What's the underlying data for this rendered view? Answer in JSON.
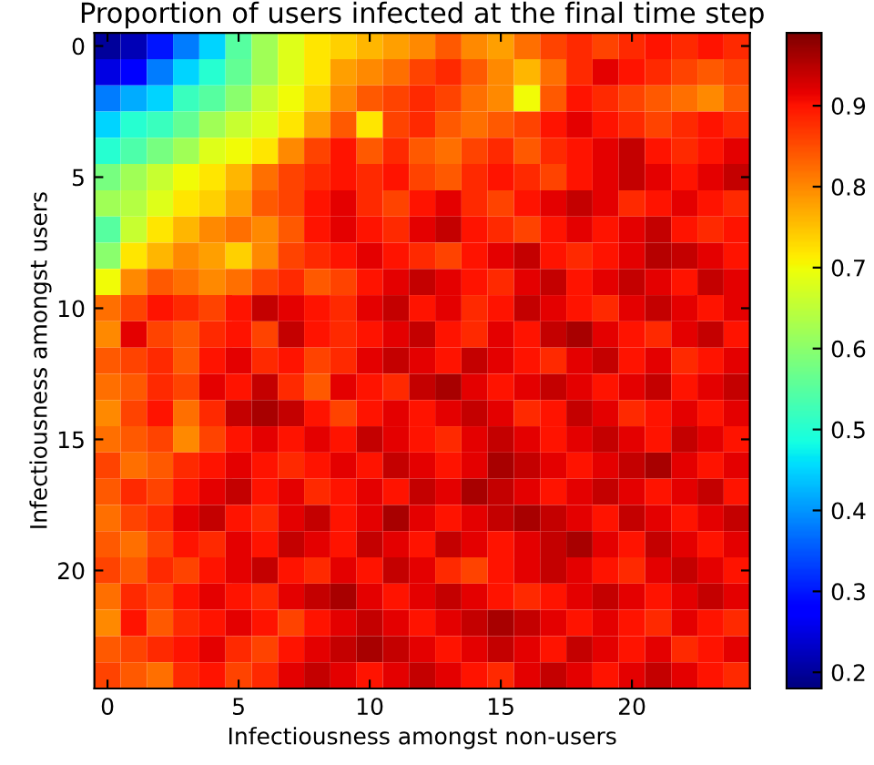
{
  "chart_data": {
    "type": "heatmap",
    "title": "Proportion of users infected at the final time step",
    "xlabel": "Infectiousness amongst non-users",
    "ylabel": "Infectiousness amongst users",
    "x": [
      0,
      1,
      2,
      3,
      4,
      5,
      6,
      7,
      8,
      9,
      10,
      11,
      12,
      13,
      14,
      15,
      16,
      17,
      18,
      19,
      20,
      21,
      22,
      23,
      24
    ],
    "y": [
      0,
      1,
      2,
      3,
      4,
      5,
      6,
      7,
      8,
      9,
      10,
      11,
      12,
      13,
      14,
      15,
      16,
      17,
      18,
      19,
      20,
      21,
      22,
      23,
      24
    ],
    "xlim": [
      -0.5,
      24.5
    ],
    "ylim": [
      24.5,
      -0.5
    ],
    "xticks": [
      0,
      5,
      10,
      15,
      20
    ],
    "yticks": [
      0,
      5,
      10,
      15,
      20
    ],
    "clim": [
      0.18,
      0.99
    ],
    "cticks": [
      0.2,
      0.3,
      0.4,
      0.5,
      0.6,
      0.7,
      0.8,
      0.9
    ],
    "grid": false,
    "cells": [
      [
        0.2,
        0.22,
        0.3,
        0.38,
        0.45,
        0.55,
        0.62,
        0.68,
        0.72,
        0.74,
        0.76,
        0.78,
        0.8,
        0.84,
        0.8,
        0.78,
        0.82,
        0.86,
        0.88,
        0.86,
        0.88,
        0.9,
        0.88,
        0.9,
        0.88
      ],
      [
        0.25,
        0.28,
        0.38,
        0.45,
        0.5,
        0.56,
        0.62,
        0.68,
        0.72,
        0.78,
        0.8,
        0.82,
        0.86,
        0.88,
        0.84,
        0.8,
        0.76,
        0.82,
        0.88,
        0.92,
        0.9,
        0.88,
        0.86,
        0.84,
        0.86
      ],
      [
        0.38,
        0.42,
        0.45,
        0.52,
        0.55,
        0.6,
        0.66,
        0.7,
        0.74,
        0.8,
        0.84,
        0.86,
        0.88,
        0.86,
        0.82,
        0.8,
        0.7,
        0.84,
        0.9,
        0.88,
        0.86,
        0.84,
        0.82,
        0.8,
        0.84
      ],
      [
        0.45,
        0.5,
        0.52,
        0.56,
        0.62,
        0.66,
        0.68,
        0.72,
        0.78,
        0.84,
        0.72,
        0.86,
        0.88,
        0.84,
        0.82,
        0.84,
        0.86,
        0.9,
        0.92,
        0.9,
        0.88,
        0.86,
        0.88,
        0.9,
        0.88
      ],
      [
        0.5,
        0.54,
        0.58,
        0.62,
        0.68,
        0.7,
        0.72,
        0.8,
        0.86,
        0.9,
        0.84,
        0.88,
        0.84,
        0.82,
        0.86,
        0.88,
        0.84,
        0.88,
        0.9,
        0.92,
        0.94,
        0.9,
        0.88,
        0.9,
        0.92
      ],
      [
        0.58,
        0.62,
        0.66,
        0.7,
        0.72,
        0.76,
        0.82,
        0.86,
        0.88,
        0.9,
        0.88,
        0.9,
        0.86,
        0.84,
        0.88,
        0.9,
        0.88,
        0.86,
        0.9,
        0.92,
        0.94,
        0.92,
        0.9,
        0.92,
        0.94
      ],
      [
        0.62,
        0.64,
        0.68,
        0.72,
        0.74,
        0.78,
        0.84,
        0.86,
        0.9,
        0.92,
        0.88,
        0.86,
        0.9,
        0.92,
        0.88,
        0.86,
        0.9,
        0.92,
        0.94,
        0.92,
        0.88,
        0.9,
        0.92,
        0.9,
        0.88
      ],
      [
        0.55,
        0.66,
        0.72,
        0.76,
        0.8,
        0.82,
        0.8,
        0.84,
        0.9,
        0.92,
        0.9,
        0.88,
        0.92,
        0.94,
        0.9,
        0.88,
        0.86,
        0.9,
        0.92,
        0.9,
        0.92,
        0.94,
        0.9,
        0.88,
        0.9
      ],
      [
        0.6,
        0.72,
        0.76,
        0.8,
        0.78,
        0.74,
        0.8,
        0.86,
        0.88,
        0.9,
        0.92,
        0.9,
        0.88,
        0.86,
        0.9,
        0.92,
        0.94,
        0.9,
        0.88,
        0.9,
        0.92,
        0.95,
        0.94,
        0.92,
        0.9
      ],
      [
        0.7,
        0.8,
        0.84,
        0.82,
        0.8,
        0.82,
        0.86,
        0.88,
        0.84,
        0.86,
        0.9,
        0.92,
        0.94,
        0.92,
        0.9,
        0.88,
        0.92,
        0.94,
        0.9,
        0.92,
        0.94,
        0.92,
        0.9,
        0.94,
        0.92
      ],
      [
        0.82,
        0.86,
        0.9,
        0.88,
        0.86,
        0.9,
        0.94,
        0.92,
        0.9,
        0.88,
        0.92,
        0.94,
        0.9,
        0.92,
        0.88,
        0.9,
        0.94,
        0.92,
        0.9,
        0.88,
        0.92,
        0.94,
        0.92,
        0.9,
        0.92
      ],
      [
        0.8,
        0.92,
        0.86,
        0.84,
        0.88,
        0.9,
        0.86,
        0.94,
        0.9,
        0.88,
        0.9,
        0.92,
        0.94,
        0.9,
        0.88,
        0.92,
        0.9,
        0.94,
        0.96,
        0.92,
        0.9,
        0.88,
        0.92,
        0.94,
        0.9
      ],
      [
        0.84,
        0.86,
        0.88,
        0.84,
        0.9,
        0.92,
        0.88,
        0.9,
        0.86,
        0.88,
        0.92,
        0.94,
        0.92,
        0.9,
        0.94,
        0.92,
        0.9,
        0.88,
        0.92,
        0.94,
        0.9,
        0.92,
        0.88,
        0.9,
        0.92
      ],
      [
        0.82,
        0.84,
        0.88,
        0.86,
        0.92,
        0.9,
        0.94,
        0.88,
        0.84,
        0.92,
        0.9,
        0.88,
        0.94,
        0.96,
        0.92,
        0.9,
        0.92,
        0.94,
        0.92,
        0.9,
        0.92,
        0.94,
        0.9,
        0.92,
        0.94
      ],
      [
        0.8,
        0.86,
        0.9,
        0.82,
        0.88,
        0.94,
        0.96,
        0.94,
        0.9,
        0.86,
        0.9,
        0.92,
        0.9,
        0.92,
        0.94,
        0.92,
        0.88,
        0.9,
        0.94,
        0.92,
        0.88,
        0.9,
        0.92,
        0.9,
        0.92
      ],
      [
        0.82,
        0.84,
        0.86,
        0.8,
        0.86,
        0.9,
        0.92,
        0.9,
        0.92,
        0.9,
        0.94,
        0.92,
        0.9,
        0.88,
        0.92,
        0.94,
        0.92,
        0.9,
        0.92,
        0.94,
        0.92,
        0.9,
        0.94,
        0.92,
        0.9
      ],
      [
        0.86,
        0.82,
        0.84,
        0.88,
        0.9,
        0.92,
        0.9,
        0.88,
        0.9,
        0.92,
        0.9,
        0.94,
        0.92,
        0.9,
        0.92,
        0.96,
        0.94,
        0.92,
        0.9,
        0.92,
        0.94,
        0.96,
        0.92,
        0.9,
        0.92
      ],
      [
        0.84,
        0.88,
        0.86,
        0.9,
        0.92,
        0.94,
        0.9,
        0.92,
        0.88,
        0.9,
        0.92,
        0.9,
        0.94,
        0.92,
        0.96,
        0.94,
        0.92,
        0.9,
        0.92,
        0.94,
        0.92,
        0.9,
        0.92,
        0.94,
        0.9
      ],
      [
        0.82,
        0.86,
        0.88,
        0.92,
        0.94,
        0.9,
        0.88,
        0.92,
        0.94,
        0.9,
        0.92,
        0.96,
        0.92,
        0.9,
        0.92,
        0.94,
        0.96,
        0.94,
        0.92,
        0.9,
        0.94,
        0.92,
        0.9,
        0.92,
        0.94
      ],
      [
        0.84,
        0.82,
        0.86,
        0.9,
        0.88,
        0.92,
        0.9,
        0.94,
        0.92,
        0.9,
        0.94,
        0.92,
        0.9,
        0.94,
        0.92,
        0.9,
        0.92,
        0.94,
        0.96,
        0.92,
        0.9,
        0.94,
        0.92,
        0.9,
        0.92
      ],
      [
        0.86,
        0.84,
        0.88,
        0.86,
        0.9,
        0.92,
        0.94,
        0.9,
        0.88,
        0.92,
        0.9,
        0.94,
        0.92,
        0.88,
        0.86,
        0.9,
        0.92,
        0.94,
        0.92,
        0.9,
        0.88,
        0.92,
        0.94,
        0.92,
        0.9
      ],
      [
        0.82,
        0.88,
        0.86,
        0.9,
        0.92,
        0.9,
        0.88,
        0.92,
        0.94,
        0.96,
        0.92,
        0.9,
        0.92,
        0.94,
        0.92,
        0.9,
        0.88,
        0.9,
        0.92,
        0.94,
        0.92,
        0.9,
        0.92,
        0.94,
        0.92
      ],
      [
        0.8,
        0.9,
        0.84,
        0.88,
        0.9,
        0.92,
        0.9,
        0.86,
        0.9,
        0.92,
        0.94,
        0.92,
        0.9,
        0.92,
        0.94,
        0.96,
        0.94,
        0.92,
        0.9,
        0.92,
        0.9,
        0.88,
        0.92,
        0.9,
        0.88
      ],
      [
        0.84,
        0.86,
        0.88,
        0.9,
        0.92,
        0.88,
        0.86,
        0.9,
        0.92,
        0.94,
        0.96,
        0.94,
        0.92,
        0.9,
        0.92,
        0.94,
        0.92,
        0.9,
        0.94,
        0.92,
        0.9,
        0.92,
        0.88,
        0.9,
        0.92
      ],
      [
        0.86,
        0.84,
        0.82,
        0.88,
        0.9,
        0.86,
        0.88,
        0.92,
        0.94,
        0.92,
        0.9,
        0.92,
        0.94,
        0.92,
        0.9,
        0.88,
        0.92,
        0.94,
        0.92,
        0.9,
        0.92,
        0.94,
        0.92,
        0.9,
        0.88
      ]
    ]
  }
}
